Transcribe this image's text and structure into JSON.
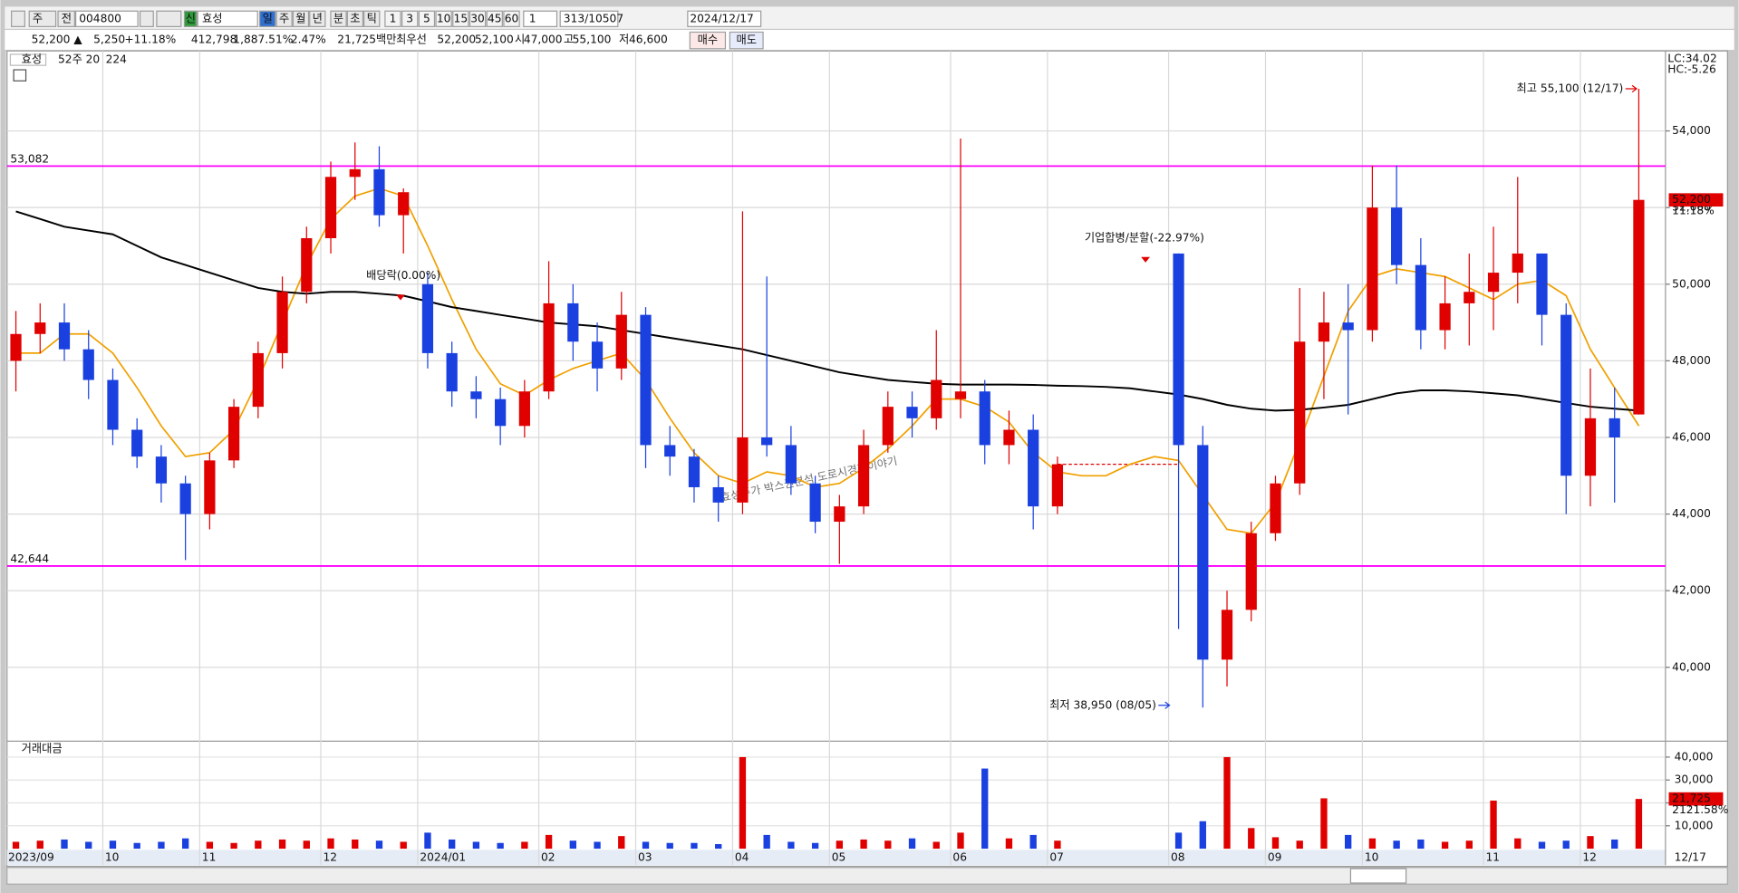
{
  "toolbar": {
    "view": "주",
    "range": "전",
    "code": "004800",
    "badge": "신",
    "name": "효성",
    "periods": [
      "일",
      "주",
      "월",
      "년",
      "분",
      "초",
      "틱"
    ],
    "minutes": [
      "1",
      "3",
      "5",
      "10",
      "15",
      "30",
      "45",
      "60"
    ],
    "count": "1",
    "shown": "313",
    "total": "/10507",
    "date": "2024/12/17"
  },
  "quote": {
    "price": "52,200 ▲",
    "change": "5,250",
    "change_pct": "+11.18%",
    "volume": "412,798",
    "volume_pct": "1,887.51%",
    "turnover": "2.47%",
    "amount": "21,725백만",
    "best_label": "최우선",
    "best_ask": "52,200",
    "best_bid": "52,100",
    "open_label": "시",
    "open": "47,000",
    "high_label": "고",
    "high": "55,100",
    "low_label": "저",
    "low": "46,600",
    "buy": "매수",
    "sell": "매도"
  },
  "chart_data": {
    "type": "candlestick",
    "legend_title": "효성",
    "lc": "LC:34.02",
    "hc": "HC:-5.26",
    "categories": [
      "2023/09",
      null,
      null,
      null,
      "10",
      null,
      null,
      null,
      "11",
      null,
      null,
      null,
      null,
      "12",
      null,
      null,
      null,
      "2024/01",
      null,
      null,
      null,
      null,
      "02",
      null,
      null,
      null,
      "03",
      null,
      null,
      null,
      "04",
      null,
      null,
      null,
      "05",
      null,
      null,
      null,
      null,
      "06",
      null,
      null,
      null,
      "07",
      null,
      null,
      null,
      null,
      "08",
      null,
      null,
      null,
      "09",
      null,
      null,
      null,
      "10",
      null,
      null,
      null,
      null,
      "11",
      null,
      null,
      null,
      "12",
      null,
      null
    ],
    "end_label": "12/17",
    "ohlc": [
      [
        48000,
        49300,
        47200,
        48700
      ],
      [
        48700,
        49500,
        48200,
        49000
      ],
      [
        49000,
        49500,
        48000,
        48300
      ],
      [
        48300,
        48800,
        47000,
        47500
      ],
      [
        47500,
        47800,
        45800,
        46200
      ],
      [
        46200,
        46500,
        45200,
        45500
      ],
      [
        45500,
        45800,
        44300,
        44800
      ],
      [
        44800,
        45000,
        42800,
        44000
      ],
      [
        44000,
        45600,
        43600,
        45400
      ],
      [
        45400,
        47000,
        45200,
        46800
      ],
      [
        46800,
        48500,
        46500,
        48200
      ],
      [
        48200,
        50200,
        47800,
        49800
      ],
      [
        49800,
        51500,
        49500,
        51200
      ],
      [
        51200,
        53200,
        50800,
        52800
      ],
      [
        52800,
        53700,
        52200,
        53000
      ],
      [
        53000,
        53600,
        51500,
        51800
      ],
      [
        51800,
        52500,
        50800,
        52400
      ],
      [
        50000,
        50300,
        47800,
        48200
      ],
      [
        48200,
        48500,
        46800,
        47200
      ],
      [
        47200,
        47600,
        46500,
        47000
      ],
      [
        47000,
        47300,
        45800,
        46300
      ],
      [
        46300,
        47500,
        46000,
        47200
      ],
      [
        47200,
        50600,
        47000,
        49500
      ],
      [
        49500,
        50000,
        48000,
        48500
      ],
      [
        48500,
        49000,
        47200,
        47800
      ],
      [
        47800,
        49800,
        47500,
        49200
      ],
      [
        49200,
        49400,
        45200,
        45800
      ],
      [
        45800,
        46300,
        45000,
        45500
      ],
      [
        45500,
        45700,
        44300,
        44700
      ],
      [
        44700,
        45000,
        43800,
        44300
      ],
      [
        44300,
        51900,
        44000,
        46000
      ],
      [
        46000,
        50200,
        45500,
        45800
      ],
      [
        45800,
        46300,
        44500,
        44800
      ],
      [
        44800,
        45000,
        43500,
        43800
      ],
      [
        43800,
        44500,
        42700,
        44200
      ],
      [
        44200,
        46200,
        44000,
        45800
      ],
      [
        45800,
        47200,
        45600,
        46800
      ],
      [
        46800,
        47200,
        46000,
        46500
      ],
      [
        46500,
        48800,
        46200,
        47500
      ],
      [
        47000,
        53800,
        46500,
        47200
      ],
      [
        47200,
        47500,
        45300,
        45800
      ],
      [
        45800,
        46700,
        45300,
        46200
      ],
      [
        46200,
        46600,
        43600,
        44200
      ],
      [
        44200,
        45500,
        44000,
        45300
      ],
      null,
      null,
      null,
      null,
      [
        50800,
        50800,
        41000,
        45800
      ],
      [
        45800,
        46300,
        38950,
        40200
      ],
      [
        40200,
        42000,
        39500,
        41500
      ],
      [
        41500,
        43800,
        41200,
        43500
      ],
      [
        43500,
        45000,
        43300,
        44800
      ],
      [
        44800,
        49900,
        44500,
        48500
      ],
      [
        48500,
        49800,
        47000,
        49000
      ],
      [
        49000,
        50000,
        46600,
        48800
      ],
      [
        48800,
        53100,
        48500,
        52000
      ],
      [
        52000,
        53100,
        50000,
        50500
      ],
      [
        50500,
        51200,
        48300,
        48800
      ],
      [
        48800,
        50200,
        48300,
        49500
      ],
      [
        49500,
        50800,
        48400,
        49800
      ],
      [
        49800,
        51500,
        48800,
        50300
      ],
      [
        50300,
        52800,
        49500,
        50800
      ],
      [
        50800,
        50800,
        48400,
        49200
      ],
      [
        49200,
        49500,
        44000,
        45000
      ],
      [
        45000,
        47800,
        44200,
        46500
      ],
      [
        46500,
        47300,
        44300,
        46000
      ],
      [
        46600,
        55100,
        46600,
        52200
      ]
    ],
    "ylim": [
      38100,
      56000
    ],
    "yticks": [
      {
        "value": 40000,
        "label": "40,000"
      },
      {
        "value": 42000,
        "label": "42,000"
      },
      {
        "value": 44000,
        "label": "44,000"
      },
      {
        "value": 46000,
        "label": "46,000"
      },
      {
        "value": 48000,
        "label": "48,000"
      },
      {
        "value": 50000,
        "label": "50,000"
      },
      {
        "value": 52000,
        "label": "52,000"
      },
      {
        "value": 54000,
        "label": "54,000"
      }
    ],
    "up_color": "#e00000",
    "down_color": "#1a40e0",
    "ma": [
      {
        "name": "20",
        "color": "#f0a000",
        "values": [
          48200,
          48200,
          48700,
          48700,
          48200,
          47300,
          46300,
          45500,
          45600,
          46200,
          47500,
          49000,
          50500,
          51700,
          52300,
          52500,
          52300,
          51000,
          49600,
          48300,
          47400,
          47100,
          47500,
          47800,
          48000,
          48200,
          47500,
          46500,
          45600,
          45000,
          44800,
          45100,
          45000,
          44700,
          44800,
          45200,
          45700,
          46300,
          47000,
          47000,
          46800,
          46400,
          45600,
          45100,
          45000,
          45000,
          45300,
          45500,
          45400,
          44500,
          43600,
          43500,
          44300,
          45900,
          47600,
          49300,
          50200,
          50400,
          50300,
          50200,
          49900,
          49600,
          50000,
          50100,
          49700,
          48300,
          47300,
          46300
        ]
      },
      {
        "name": "224",
        "color": "#000000",
        "values": [
          51900,
          51700,
          51500,
          51400,
          51300,
          51000,
          50700,
          50500,
          50300,
          50100,
          49900,
          49800,
          49750,
          49800,
          49800,
          49750,
          49700,
          49550,
          49400,
          49300,
          49200,
          49100,
          49000,
          48950,
          48900,
          48800,
          48700,
          48600,
          48500,
          48400,
          48300,
          48150,
          48000,
          47850,
          47700,
          47600,
          47500,
          47450,
          47400,
          47380,
          47380,
          47380,
          47370,
          47350,
          47340,
          47320,
          47280,
          47200,
          47120,
          47000,
          46850,
          46750,
          46700,
          46720,
          46780,
          46850,
          47000,
          47150,
          47230,
          47230,
          47200,
          47150,
          47100,
          47000,
          46900,
          46800,
          46750,
          46700
        ]
      }
    ],
    "ref_lines": {
      "name": "52주",
      "color": "#ff00ff",
      "lines": [
        {
          "value": 53082,
          "label": "53,082"
        },
        {
          "value": 42644,
          "label": "42,644"
        }
      ]
    },
    "price_tag": {
      "value": 52200,
      "label": "52,200",
      "change": "11.18%"
    },
    "annotations": {
      "high": "최고 55,100 (12/17)",
      "low": "최저 38,950 (08/05)",
      "dividend": "배당락(0.00%)",
      "merger": "기업합병/분할(-22.97%)"
    },
    "watermark": "효성주가 박스권분석 도로시경제이야기",
    "volume": {
      "title": "거래대금",
      "values": [
        3000,
        3500,
        4000,
        3000,
        3500,
        2500,
        3000,
        4500,
        3000,
        2500,
        3500,
        4000,
        3500,
        4500,
        4000,
        3500,
        3000,
        7000,
        4000,
        3000,
        2500,
        3000,
        6000,
        3500,
        3000,
        5500,
        3000,
        2500,
        2500,
        2000,
        40000,
        6000,
        3000,
        2500,
        3500,
        4000,
        3500,
        4500,
        3000,
        7000,
        35000,
        4500,
        6000,
        3500,
        null,
        null,
        null,
        null,
        7000,
        12000,
        40000,
        9000,
        5000,
        3500,
        22000,
        6000,
        4500,
        3500,
        4000,
        3000,
        3500,
        21000,
        4500,
        3000,
        3500,
        5500,
        4000,
        21725
      ],
      "ylim": [
        0,
        45000
      ],
      "yticks": [
        {
          "value": 10000,
          "label": "10,000"
        },
        {
          "value": 20000,
          "label": "20,000"
        },
        {
          "value": 30000,
          "label": "30,000"
        },
        {
          "value": 40000,
          "label": "40,000"
        }
      ],
      "tag_label": "21,725",
      "tag_change": "2121.58%"
    }
  }
}
